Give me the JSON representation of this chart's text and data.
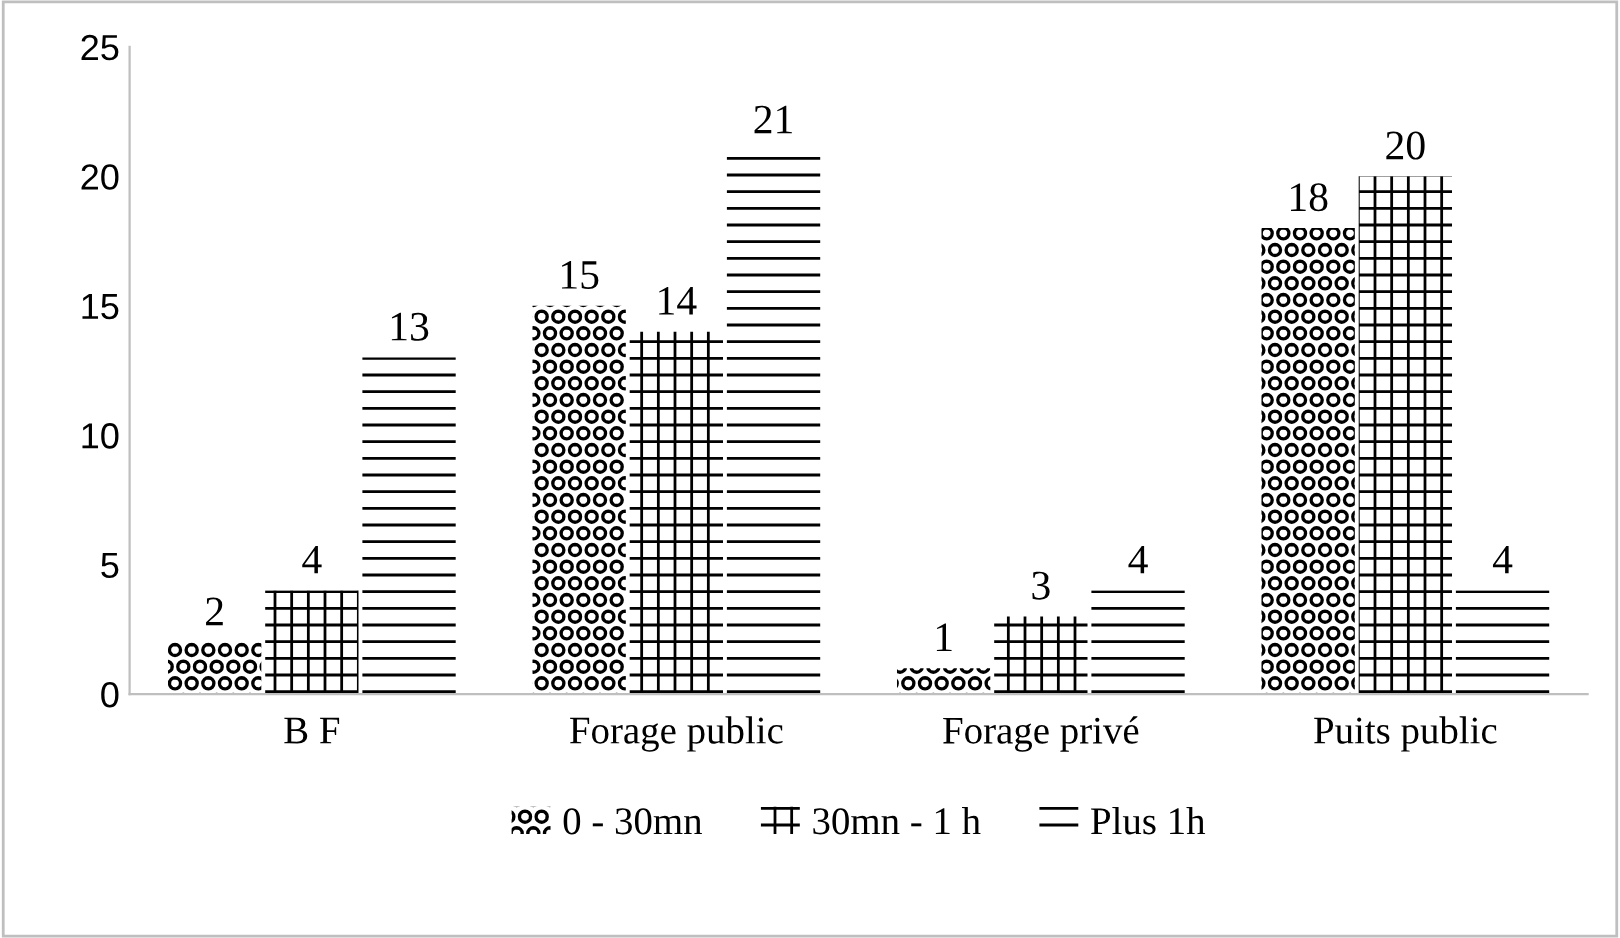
{
  "chart_data": {
    "type": "bar",
    "categories": [
      "B F",
      "Forage public",
      "Forage privé",
      "Puits public"
    ],
    "series": [
      {
        "name": "0 - 30mn",
        "color": "#000000",
        "values": [
          2,
          15,
          1,
          18
        ]
      },
      {
        "name": "30mn - 1 h",
        "color": "#000000",
        "values": [
          4,
          14,
          3,
          20
        ]
      },
      {
        "name": "Plus 1h",
        "color": "#000000",
        "values": [
          13,
          21,
          4,
          4
        ]
      }
    ],
    "ylim": [
      0,
      25
    ],
    "yticks": [
      0,
      5,
      10,
      15,
      20,
      25
    ],
    "grid": false,
    "legend": "bottom",
    "data_labels": true
  }
}
